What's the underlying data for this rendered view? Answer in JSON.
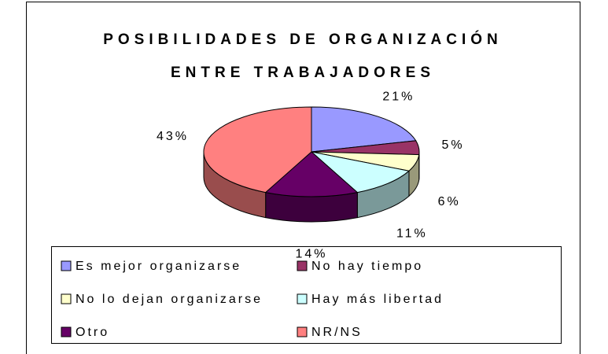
{
  "chart_data": {
    "type": "pie",
    "title": "POSIBILIDADES DE ORGANIZACIÓN ENTRE TRABAJADORES",
    "categories": [
      "Es mejor organizarse",
      "No hay tiempo",
      "No lo dejan organizarse",
      "Hay más libertad",
      "Otro",
      "NR/NS"
    ],
    "values": [
      21,
      5,
      6,
      11,
      14,
      43
    ],
    "value_labels": [
      "21%",
      "5%",
      "6%",
      "11%",
      "14%",
      "43%"
    ],
    "colors": [
      "#9999ff",
      "#993366",
      "#ffffcc",
      "#ccffff",
      "#660066",
      "#ff8080"
    ],
    "legend": "bottom"
  }
}
